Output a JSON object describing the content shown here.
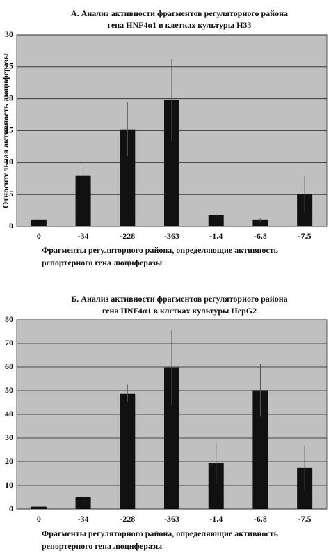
{
  "chart_data": [
    {
      "type": "bar",
      "title": [
        "А. Анализ активности фрагментов регуляторного района",
        "гена HNF4α1 в клетках культуры H33"
      ],
      "y_label": "Относительная активность люциферазы",
      "x_label": [
        "Фрагменты регуляторного района, определяющие активность",
        "репортерного гена люциферазы"
      ],
      "categories": [
        "0",
        "-34",
        "-228",
        "-363",
        "-1.4",
        "-6.8",
        "-7.5"
      ],
      "values": [
        1,
        8,
        15.2,
        19.8,
        1.8,
        1,
        5.1
      ],
      "errors": [
        0,
        1.5,
        4.2,
        6.4,
        0.3,
        0.3,
        2.9
      ],
      "color": "#111111",
      "background": "#c0c0c0",
      "ylim": [
        0,
        30
      ],
      "yticks": [
        0,
        5,
        10,
        15,
        20,
        25,
        30
      ],
      "grid": true
    },
    {
      "type": "bar",
      "title": [
        "Б. Анализ активности фрагментов регуляторного района",
        "гена HNF4α1 в клетках культуры HepG2"
      ],
      "x_label": [
        "Фрагменты регуляторного района, определяющие активность",
        "репортерного гена люциферазы"
      ],
      "categories": [
        "0",
        "-34",
        "-228",
        "-363",
        "-1.4",
        "-6.8",
        "-7.5"
      ],
      "values": [
        1,
        5.3,
        48.9,
        59.8,
        19.4,
        50.2,
        17.4
      ],
      "errors": [
        0,
        1.5,
        3.6,
        15.8,
        8.8,
        11.3,
        9.4
      ],
      "color": "#111111",
      "background": "#c0c0c0",
      "ylim": [
        0,
        80
      ],
      "yticks": [
        0,
        10,
        20,
        30,
        40,
        50,
        60,
        70,
        80
      ],
      "grid": true
    }
  ]
}
